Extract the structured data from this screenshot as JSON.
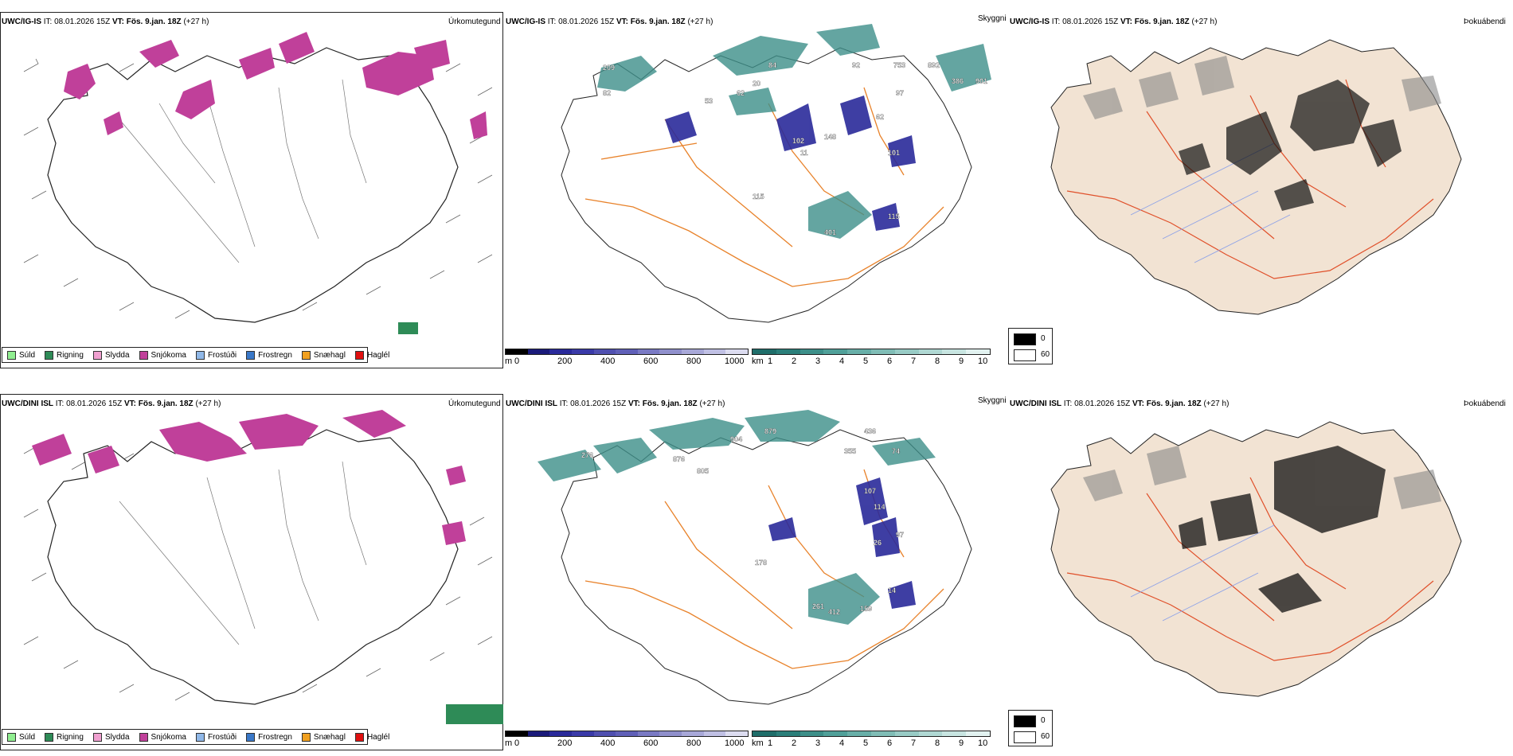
{
  "rows": [
    {
      "model": "UWC/IG-IS",
      "it_label": "IT:",
      "it_value": "08.01.2026 15Z",
      "vt_label": "VT:",
      "vt_value": "Fös. 9.jan. 18Z",
      "lead": "(+27 h)"
    },
    {
      "model": "UWC/DINI ISL",
      "it_label": "IT:",
      "it_value": "08.01.2026 15Z",
      "vt_label": "VT:",
      "vt_value": "Fös. 9.jan. 18Z",
      "lead": "(+27 h)"
    }
  ],
  "panel_titles": {
    "precip": "Úrkomutegund",
    "clouds": "Skyggni",
    "fog": "Þokuábendi"
  },
  "precip_legend": [
    {
      "label": "Súld",
      "color": "#90ee90"
    },
    {
      "label": "Rigning",
      "color": "#2e8b57"
    },
    {
      "label": "Slydda",
      "color": "#f0a0d0"
    },
    {
      "label": "Snjókoma",
      "color": "#c0409a"
    },
    {
      "label": "Frostúði",
      "color": "#90b8e8"
    },
    {
      "label": "Frostregn",
      "color": "#3a78c8"
    },
    {
      "label": "Snæhagl",
      "color": "#f0a020"
    },
    {
      "label": "Haglél",
      "color": "#e01010"
    }
  ],
  "cloud_base_scale": {
    "unit": "m",
    "ticks": [
      "0",
      "200",
      "400",
      "600",
      "800",
      "1000"
    ],
    "colors": [
      "#000000",
      "#1a1a7a",
      "#2a2a9a",
      "#3a3aa8",
      "#5050b0",
      "#6060b8",
      "#7a7ac4",
      "#9090cc",
      "#a8a8d8",
      "#c0c0e4",
      "#dcdcf0"
    ]
  },
  "visibility_scale": {
    "unit": "km",
    "ticks": [
      "1",
      "2",
      "3",
      "4",
      "5",
      "6",
      "7",
      "8",
      "9",
      "10"
    ],
    "colors": [
      "#1f6e6a",
      "#2b7f7a",
      "#3d8f89",
      "#50a099",
      "#68afa8",
      "#80bdb6",
      "#98cbc5",
      "#b0d8d3",
      "#c8e5e1",
      "#e2f2f0"
    ]
  },
  "fog_legend": {
    "values": [
      "0",
      "60"
    ],
    "colors": [
      "#000000",
      "#ffffff"
    ]
  },
  "row1_labels": [
    "209",
    "82",
    "53",
    "62",
    "20",
    "84",
    "92",
    "753",
    "892",
    "386",
    "901",
    "97",
    "62",
    "102",
    "148",
    "101",
    "11",
    "115",
    "401",
    "115"
  ],
  "row2_labels": [
    "276",
    "879",
    "904",
    "876",
    "805",
    "436",
    "355",
    "74",
    "107",
    "114",
    "26",
    "97",
    "261",
    "412",
    "159",
    "14",
    "178"
  ],
  "colors": {
    "snow": "#c0409a",
    "green": "#2e8b57",
    "roads": "#e8822a",
    "land_fog": "#f2e3d3",
    "fog_roads": "#e0502a",
    "rivers": "#8aa0e8",
    "cloud_navy": "#2a2a9a",
    "vis_teal": "#3d8f89"
  }
}
